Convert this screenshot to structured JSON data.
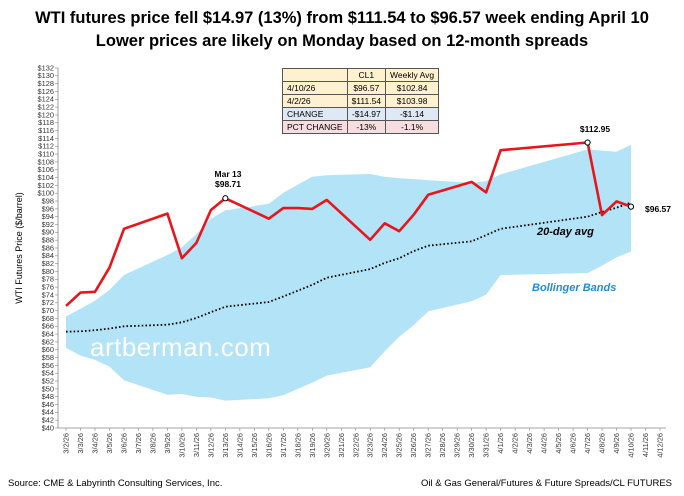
{
  "title_line1": "WTI futures price fell $14.97 (13%) from $111.54 to $96.57 week ending April 10",
  "title_line2": "Lower prices are likely on Monday based on 12-month spreads",
  "source_left": "Source: CME & Labyrinth Consulting Services, Inc.",
  "source_right": "Oil & Gas General/Futures & Future Spreads/CL FUTURES",
  "watermark": "artberman.com",
  "colors": {
    "price_line": "#e8151b",
    "band_fill": "#b3e3f7",
    "ma_line": "#000000",
    "band_label": "#1f8dd6"
  },
  "table": {
    "headers": [
      "",
      "CL1",
      "Weekly Avg"
    ],
    "rows": [
      [
        "4/10/26",
        "$96.57",
        "$102.84"
      ],
      [
        "4/2/26",
        "$111.54",
        "$103.98"
      ],
      [
        "CHANGE",
        "-$14.97",
        "-$1.14"
      ],
      [
        "PCT CHANGE",
        "-13%",
        "-1.1%"
      ]
    ]
  },
  "annotations": {
    "mar13_date": "Mar 13",
    "mar13_value": "$98.71",
    "peak_value": "$112.95",
    "last_value": "$96.57",
    "ma_label": "20-day avg",
    "band_label": "Bollinger Bands"
  },
  "chart_data": {
    "type": "line",
    "ylabel": "WTI  Futures Price ($/barrel)",
    "ylim": [
      40,
      132
    ],
    "y_tick_step": 2,
    "x_dates": [
      "3/2/26",
      "3/3/26",
      "3/4/26",
      "3/5/26",
      "3/6/26",
      "3/7/26",
      "3/8/26",
      "3/9/26",
      "3/10/26",
      "3/11/26",
      "3/12/26",
      "3/13/26",
      "3/14/26",
      "3/15/26",
      "3/16/26",
      "3/17/26",
      "3/18/26",
      "3/19/26",
      "3/20/26",
      "3/21/26",
      "3/22/26",
      "3/23/26",
      "3/24/26",
      "3/25/26",
      "3/26/26",
      "3/27/26",
      "3/28/26",
      "3/29/26",
      "3/30/26",
      "3/31/26",
      "4/1/26",
      "4/2/26",
      "4/3/26",
      "4/4/26",
      "4/5/26",
      "4/6/26",
      "4/7/26",
      "4/8/26",
      "4/9/26",
      "4/10/26",
      "4/11/26",
      "4/12/26"
    ],
    "series": [
      {
        "name": "CL1",
        "points": [
          [
            "3/2/26",
            71.2
          ],
          [
            "3/3/26",
            74.6
          ],
          [
            "3/4/26",
            74.8
          ],
          [
            "3/5/26",
            81.0
          ],
          [
            "3/6/26",
            90.9
          ],
          [
            "3/9/26",
            94.8
          ],
          [
            "3/10/26",
            83.4
          ],
          [
            "3/11/26",
            87.3
          ],
          [
            "3/12/26",
            95.7
          ],
          [
            "3/13/26",
            98.71
          ],
          [
            "3/16/26",
            93.5
          ],
          [
            "3/17/26",
            96.2
          ],
          [
            "3/18/26",
            96.2
          ],
          [
            "3/19/26",
            96.0
          ],
          [
            "3/20/26",
            98.3
          ],
          [
            "3/23/26",
            88.1
          ],
          [
            "3/24/26",
            92.3
          ],
          [
            "3/25/26",
            90.3
          ],
          [
            "3/26/26",
            94.5
          ],
          [
            "3/27/26",
            99.6
          ],
          [
            "3/30/26",
            102.9
          ],
          [
            "3/31/26",
            100.2
          ],
          [
            "4/1/26",
            111.0
          ],
          [
            "4/7/26",
            112.95
          ],
          [
            "4/8/26",
            94.4
          ],
          [
            "4/9/26",
            97.9
          ],
          [
            "4/10/26",
            96.57
          ]
        ]
      },
      {
        "name": "20-day avg",
        "points": [
          [
            "3/2/26",
            64.6
          ],
          [
            "3/3/26",
            64.7
          ],
          [
            "3/4/26",
            65.0
          ],
          [
            "3/5/26",
            65.4
          ],
          [
            "3/6/26",
            66.0
          ],
          [
            "3/9/26",
            66.4
          ],
          [
            "3/10/26",
            67.0
          ],
          [
            "3/11/26",
            68.1
          ],
          [
            "3/12/26",
            69.6
          ],
          [
            "3/13/26",
            71.0
          ],
          [
            "3/16/26",
            72.2
          ],
          [
            "3/17/26",
            73.6
          ],
          [
            "3/18/26",
            75.1
          ],
          [
            "3/19/26",
            76.6
          ],
          [
            "3/20/26",
            78.4
          ],
          [
            "3/23/26",
            80.6
          ],
          [
            "3/24/26",
            82.2
          ],
          [
            "3/25/26",
            83.4
          ],
          [
            "3/26/26",
            85.2
          ],
          [
            "3/27/26",
            86.6
          ],
          [
            "3/30/26",
            87.7
          ],
          [
            "3/31/26",
            89.3
          ],
          [
            "4/1/26",
            90.9
          ],
          [
            "4/7/26",
            94.0
          ],
          [
            "4/8/26",
            95.2
          ],
          [
            "4/9/26",
            96.3
          ],
          [
            "4/10/26",
            97.6
          ]
        ]
      },
      {
        "name": "Bollinger Bands",
        "upper": [
          [
            "3/2/26",
            68.5
          ],
          [
            "3/3/26",
            70.5
          ],
          [
            "3/4/26",
            72.5
          ],
          [
            "3/5/26",
            75.3
          ],
          [
            "3/6/26",
            79.1
          ],
          [
            "3/9/26",
            84.2
          ],
          [
            "3/10/26",
            86.2
          ],
          [
            "3/11/26",
            89.5
          ],
          [
            "3/12/26",
            93.5
          ],
          [
            "3/13/26",
            95.6
          ],
          [
            "3/16/26",
            97.3
          ],
          [
            "3/17/26",
            100.1
          ],
          [
            "3/18/26",
            102.2
          ],
          [
            "3/19/26",
            104.2
          ],
          [
            "3/20/26",
            104.6
          ],
          [
            "3/23/26",
            104.9
          ],
          [
            "3/24/26",
            104.2
          ],
          [
            "3/25/26",
            103.8
          ],
          [
            "3/26/26",
            103.6
          ],
          [
            "3/27/26",
            103.3
          ],
          [
            "3/30/26",
            102.7
          ],
          [
            "3/31/26",
            103.1
          ],
          [
            "4/1/26",
            104.8
          ],
          [
            "4/7/26",
            111.2
          ],
          [
            "4/8/26",
            110.9
          ],
          [
            "4/9/26",
            110.6
          ],
          [
            "4/10/26",
            112.4
          ]
        ],
        "lower": [
          [
            "3/2/26",
            60.5
          ],
          [
            "3/3/26",
            58.5
          ],
          [
            "3/4/26",
            57.4
          ],
          [
            "3/5/26",
            55.7
          ],
          [
            "3/6/26",
            52.2
          ],
          [
            "3/9/26",
            48.5
          ],
          [
            "3/10/26",
            48.7
          ],
          [
            "3/11/26",
            48.0
          ],
          [
            "3/12/26",
            47.8
          ],
          [
            "3/13/26",
            47.0
          ],
          [
            "3/16/26",
            47.6
          ],
          [
            "3/17/26",
            48.4
          ],
          [
            "3/18/26",
            50.0
          ],
          [
            "3/19/26",
            51.6
          ],
          [
            "3/20/26",
            53.4
          ],
          [
            "3/23/26",
            55.5
          ],
          [
            "3/24/26",
            59.6
          ],
          [
            "3/25/26",
            63.3
          ],
          [
            "3/26/26",
            66.3
          ],
          [
            "3/27/26",
            69.8
          ],
          [
            "3/30/26",
            72.4
          ],
          [
            "3/31/26",
            74.1
          ],
          [
            "4/1/26",
            79.1
          ],
          [
            "4/7/26",
            79.6
          ],
          [
            "4/8/26",
            81.5
          ],
          [
            "4/9/26",
            83.6
          ],
          [
            "4/10/26",
            85.1
          ]
        ]
      }
    ],
    "grid": false,
    "legend": "none"
  }
}
